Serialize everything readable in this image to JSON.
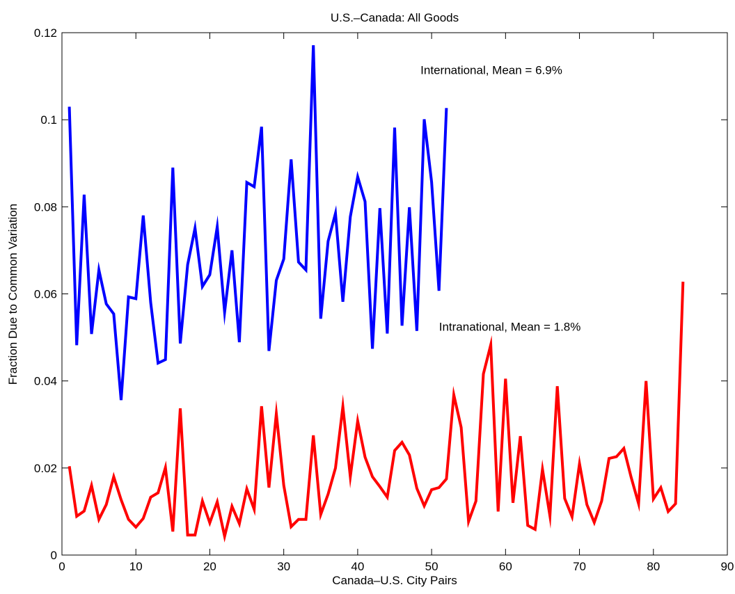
{
  "chart_data": {
    "type": "line",
    "title": "U.S.–Canada:  All Goods",
    "xlabel": "Canada–U.S. City Pairs",
    "ylabel": "Fraction Due to Common Variation",
    "xlim": [
      0,
      90
    ],
    "ylim": [
      0,
      0.12
    ],
    "xticks": [
      0,
      10,
      20,
      30,
      40,
      50,
      60,
      70,
      80,
      90
    ],
    "yticks": [
      0,
      0.02,
      0.04,
      0.06,
      0.08,
      0.1,
      0.12
    ],
    "xtick_labels": [
      "0",
      "10",
      "20",
      "30",
      "40",
      "50",
      "60",
      "70",
      "80",
      "90"
    ],
    "ytick_labels": [
      "0",
      "0.02",
      "0.04",
      "0.06",
      "0.08",
      "0.1",
      "0.12"
    ],
    "grid": false,
    "series": [
      {
        "color": "#0000ff",
        "x_start": 1,
        "values": [
          0.103,
          0.0482,
          0.0828,
          0.0508,
          0.0655,
          0.0577,
          0.0554,
          0.0356,
          0.0593,
          0.0589,
          0.078,
          0.058,
          0.0441,
          0.0449,
          0.089,
          0.0486,
          0.0667,
          0.0751,
          0.0617,
          0.0644,
          0.0754,
          0.0558,
          0.07,
          0.0489,
          0.0856,
          0.0846,
          0.0984,
          0.0469,
          0.0631,
          0.068,
          0.0909,
          0.0673,
          0.0655,
          0.1171,
          0.0543,
          0.0721,
          0.0785,
          0.0582,
          0.0777,
          0.0869,
          0.0812,
          0.0474,
          0.0797,
          0.0509,
          0.0982,
          0.0527,
          0.0799,
          0.0515,
          0.1001,
          0.0857,
          0.0607,
          0.1027
        ]
      },
      {
        "color": "#ff0000",
        "x_start": 1,
        "values": [
          0.0204,
          0.0089,
          0.0101,
          0.016,
          0.0082,
          0.0116,
          0.018,
          0.0127,
          0.0082,
          0.0064,
          0.0084,
          0.0133,
          0.0143,
          0.0201,
          0.0054,
          0.0337,
          0.0046,
          0.0046,
          0.0124,
          0.0074,
          0.0122,
          0.0043,
          0.0112,
          0.0072,
          0.0152,
          0.0105,
          0.0342,
          0.0155,
          0.0325,
          0.016,
          0.0065,
          0.0082,
          0.0082,
          0.0275,
          0.0093,
          0.014,
          0.02,
          0.0341,
          0.018,
          0.0308,
          0.0225,
          0.018,
          0.0157,
          0.0133,
          0.024,
          0.0259,
          0.023,
          0.0153,
          0.0113,
          0.015,
          0.0155,
          0.0175,
          0.0368,
          0.0293,
          0.0077,
          0.0124,
          0.0416,
          0.0483,
          0.01,
          0.0405,
          0.012,
          0.0273,
          0.0068,
          0.0059,
          0.0197,
          0.009,
          0.0388,
          0.013,
          0.0088,
          0.021,
          0.0116,
          0.0075,
          0.0124,
          0.0222,
          0.0226,
          0.0245,
          0.0178,
          0.0118,
          0.04,
          0.0129,
          0.0155,
          0.01,
          0.0118,
          0.0628
        ]
      }
    ],
    "annotations": [
      {
        "text": "International, Mean = 6.9%",
        "x": 48.5,
        "y": 0.1105
      },
      {
        "text": "Intranational, Mean = 1.8%",
        "x": 51.0,
        "y": 0.0515
      }
    ]
  }
}
